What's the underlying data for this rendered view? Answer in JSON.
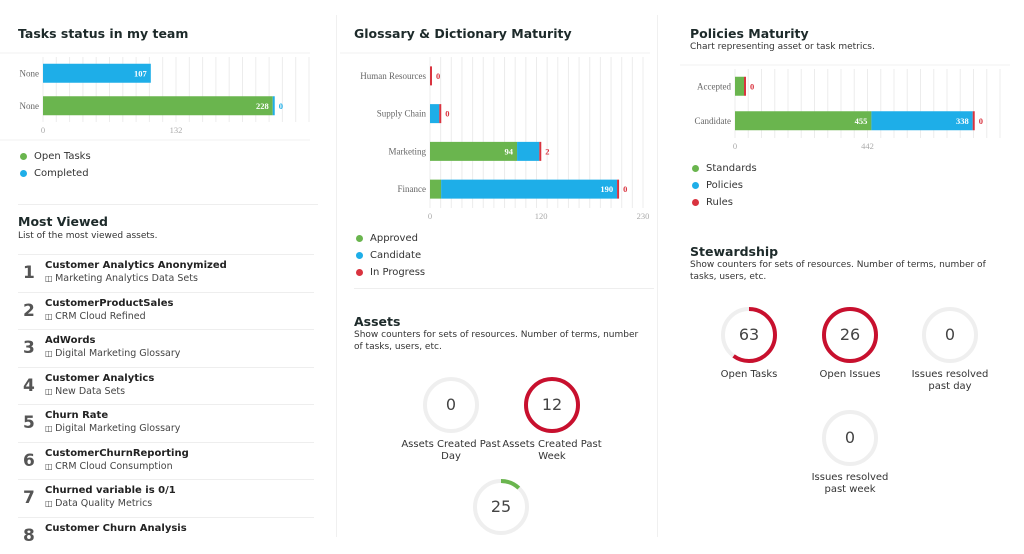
{
  "colors": {
    "green": "#6ab54e",
    "blue": "#1eaee8",
    "red": "#d9333f",
    "ring_red": "#c8102e",
    "ring_track": "#efefef"
  },
  "tasks": {
    "title": "Tasks status in my team",
    "chart_data": {
      "type": "bar",
      "orientation": "horizontal",
      "stacked": true,
      "categories": [
        "None",
        "None"
      ],
      "series": [
        {
          "name": "Open Tasks",
          "color": "#6ab54e",
          "values": [
            0,
            228
          ]
        },
        {
          "name": "Completed",
          "color": "#1eaee8",
          "values": [
            107,
            0
          ]
        }
      ],
      "xlim": [
        0,
        264
      ],
      "xticks": [
        0,
        132
      ],
      "grid": true,
      "legend": "bottom"
    }
  },
  "glossary": {
    "title": "Glossary & Dictionary Maturity",
    "chart_data": {
      "type": "bar",
      "orientation": "horizontal",
      "stacked": true,
      "categories": [
        "Human Resources",
        "Supply Chain",
        "Marketing",
        "Finance"
      ],
      "series": [
        {
          "name": "Approved",
          "color": "#6ab54e",
          "values": [
            0,
            0,
            94,
            12
          ]
        },
        {
          "name": "Candidate",
          "color": "#1eaee8",
          "values": [
            0,
            10,
            24,
            190
          ]
        },
        {
          "name": "In Progress",
          "color": "#d9333f",
          "values": [
            0,
            0,
            2,
            0
          ]
        }
      ],
      "xlim": [
        0,
        230
      ],
      "xticks": [
        0,
        120,
        230
      ],
      "grid": true,
      "legend": "bottom"
    }
  },
  "policies": {
    "title": "Policies Maturity",
    "subtitle": "Chart representing asset or task metrics.",
    "chart_data": {
      "type": "bar",
      "orientation": "horizontal",
      "stacked": true,
      "categories": [
        "Accepted",
        "Candidate"
      ],
      "series": [
        {
          "name": "Standards",
          "color": "#6ab54e",
          "values": [
            30,
            455
          ]
        },
        {
          "name": "Policies",
          "color": "#1eaee8",
          "values": [
            0,
            338
          ]
        },
        {
          "name": "Rules",
          "color": "#d9333f",
          "values": [
            0,
            0
          ]
        }
      ],
      "xlim": [
        0,
        884
      ],
      "xticks": [
        0,
        442
      ],
      "grid": true,
      "legend": "bottom"
    }
  },
  "most_viewed": {
    "title": "Most Viewed",
    "subtitle": "List of the most viewed assets.",
    "items": [
      {
        "rank": "1",
        "name": "Customer Analytics Anonymized",
        "domain": "Marketing Analytics Data Sets"
      },
      {
        "rank": "2",
        "name": "CustomerProductSales",
        "domain": "CRM Cloud Refined"
      },
      {
        "rank": "3",
        "name": "AdWords",
        "domain": "Digital Marketing Glossary"
      },
      {
        "rank": "4",
        "name": "Customer Analytics",
        "domain": "New Data Sets"
      },
      {
        "rank": "5",
        "name": "Churn Rate",
        "domain": "Digital Marketing Glossary"
      },
      {
        "rank": "6",
        "name": "CustomerChurnReporting",
        "domain": "CRM Cloud Consumption"
      },
      {
        "rank": "7",
        "name": "Churned variable is 0/1",
        "domain": "Data Quality Metrics"
      },
      {
        "rank": "8",
        "name": "Customer Churn Analysis",
        "domain": ""
      }
    ]
  },
  "assets": {
    "title": "Assets",
    "subtitle": "Show counters for sets of resources. Number of terms, number of tasks, users, etc.",
    "counters": [
      {
        "value": "0",
        "label": "Assets Created Past Day",
        "fill": 0,
        "color": "#c8102e"
      },
      {
        "value": "12",
        "label": "Assets Created Past Week",
        "fill": 1,
        "color": "#c8102e"
      },
      {
        "value": "25",
        "label": "",
        "fill": 0.12,
        "color": "#6ab54e"
      }
    ]
  },
  "stewardship": {
    "title": "Stewardship",
    "subtitle": "Show counters for sets of resources. Number of terms, number of tasks, users, etc.",
    "counters": [
      {
        "value": "63",
        "label": "Open Tasks",
        "fill": 0.6,
        "color": "#c8102e"
      },
      {
        "value": "26",
        "label": "Open Issues",
        "fill": 1,
        "color": "#c8102e"
      },
      {
        "value": "0",
        "label": "Issues resolved past day",
        "fill": 0,
        "color": "#c8102e"
      },
      {
        "value": "0",
        "label": "Issues resolved past week",
        "fill": 0,
        "color": "#c8102e"
      }
    ]
  }
}
